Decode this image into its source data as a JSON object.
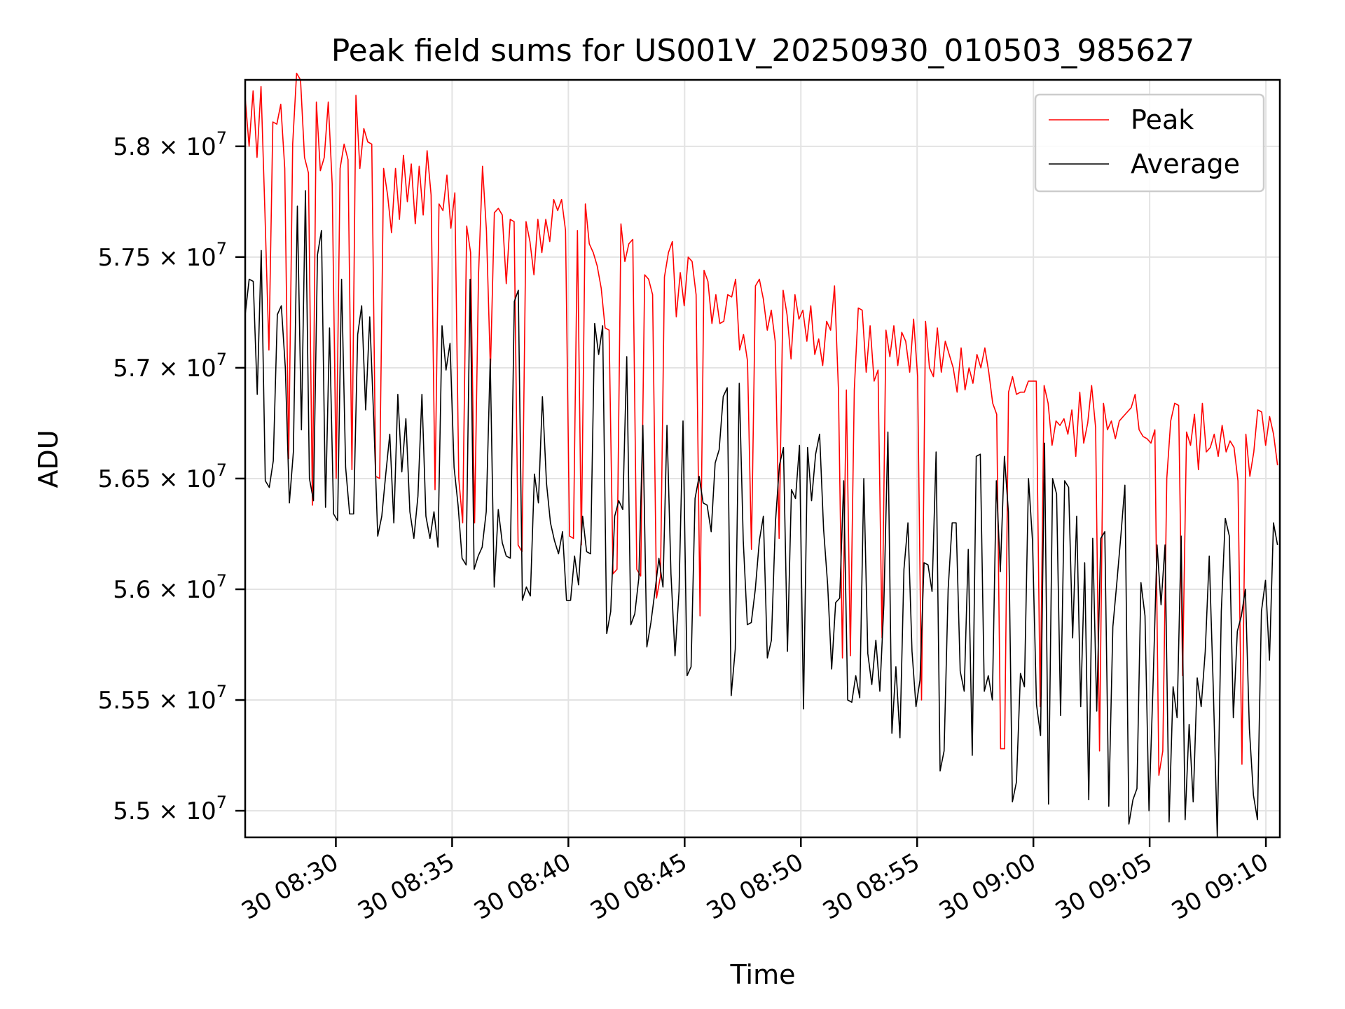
{
  "chart_data": {
    "type": "line",
    "title": "Peak field sums for US001V_20250930_010503_985627",
    "xlabel": "Time",
    "ylabel": "ADU",
    "grid": true,
    "legend_position": "top-right",
    "x_range_minutes": [
      506.1,
      550.6
    ],
    "x_start_minutes": 506.1,
    "x_end_minutes": 550.5,
    "ylim": [
      54880000,
      58300000
    ],
    "x_ticks": [
      {
        "minutes": 510,
        "label": "30 08:30"
      },
      {
        "minutes": 515,
        "label": "30 08:35"
      },
      {
        "minutes": 520,
        "label": "30 08:40"
      },
      {
        "minutes": 525,
        "label": "30 08:45"
      },
      {
        "minutes": 530,
        "label": "30 08:50"
      },
      {
        "minutes": 535,
        "label": "30 08:55"
      },
      {
        "minutes": 540,
        "label": "30 09:00"
      },
      {
        "minutes": 545,
        "label": "30 09:05"
      },
      {
        "minutes": 550,
        "label": "30 09:10"
      }
    ],
    "y_ticks": [
      {
        "value": 55000000,
        "label": "5.5 × 10",
        "exp": "7"
      },
      {
        "value": 55500000,
        "label": "5.55 × 10",
        "exp": "7"
      },
      {
        "value": 56000000,
        "label": "5.6 × 10",
        "exp": "7"
      },
      {
        "value": 56500000,
        "label": "5.65 × 10",
        "exp": "7"
      },
      {
        "value": 57000000,
        "label": "5.7 × 10",
        "exp": "7"
      },
      {
        "value": 57500000,
        "label": "5.75 × 10",
        "exp": "7"
      },
      {
        "value": 58000000,
        "label": "5.8 × 10",
        "exp": "7"
      }
    ],
    "series": [
      {
        "name": "Peak",
        "color": "#ff0000",
        "values": [
          58220000,
          58000000,
          58250000,
          57950000,
          58270000,
          57700000,
          57080000,
          58110000,
          58100000,
          58190000,
          57900000,
          56590000,
          58010000,
          58330000,
          58300000,
          57950000,
          57880000,
          56380000,
          58200000,
          57890000,
          57950000,
          58200000,
          57830000,
          56500000,
          57900000,
          58010000,
          57940000,
          56540000,
          58230000,
          57900000,
          58080000,
          58020000,
          58010000,
          56510000,
          56500000,
          57900000,
          57780000,
          57610000,
          57900000,
          57670000,
          57960000,
          57750000,
          57920000,
          57650000,
          57910000,
          57690000,
          57980000,
          57780000,
          56450000,
          57740000,
          57710000,
          57870000,
          57630000,
          57790000,
          56500000,
          56300000,
          57640000,
          57520000,
          56300000,
          57420000,
          57910000,
          57620000,
          56990000,
          57700000,
          57720000,
          57690000,
          57380000,
          57670000,
          57660000,
          56200000,
          56170000,
          57660000,
          57570000,
          57420000,
          57670000,
          57520000,
          57670000,
          57570000,
          57760000,
          57710000,
          57760000,
          57620000,
          56240000,
          56230000,
          57620000,
          56200000,
          57740000,
          57560000,
          57520000,
          57460000,
          57360000,
          57180000,
          57170000,
          56070000,
          56090000,
          57650000,
          57480000,
          57560000,
          57580000,
          56090000,
          56060000,
          57420000,
          57400000,
          57330000,
          55960000,
          56060000,
          57410000,
          57520000,
          57570000,
          57230000,
          57430000,
          57280000,
          57500000,
          57480000,
          57330000,
          55880000,
          57440000,
          57390000,
          57200000,
          57330000,
          57200000,
          57210000,
          57330000,
          57320000,
          57400000,
          57080000,
          57150000,
          57030000,
          56180000,
          57370000,
          57400000,
          57310000,
          57170000,
          57260000,
          57120000,
          56230000,
          57350000,
          57240000,
          57040000,
          57330000,
          57220000,
          57260000,
          57120000,
          57280000,
          57060000,
          57130000,
          57010000,
          57210000,
          57170000,
          57370000,
          56900000,
          55690000,
          56900000,
          55700000,
          56900000,
          57270000,
          57260000,
          56980000,
          57190000,
          56940000,
          56990000,
          55780000,
          57170000,
          57050000,
          57190000,
          57010000,
          57160000,
          57120000,
          56980000,
          57220000,
          56960000,
          55500000,
          57210000,
          57000000,
          56960000,
          57180000,
          56980000,
          57120000,
          57060000,
          57000000,
          56890000,
          57090000,
          56900000,
          57000000,
          56930000,
          57060000,
          57000000,
          57090000,
          56980000,
          56840000,
          56790000,
          55280000,
          55280000,
          56890000,
          56960000,
          56880000,
          56890000,
          56890000,
          56940000,
          56940000,
          56940000,
          55470000,
          56920000,
          56840000,
          56650000,
          56760000,
          56740000,
          56770000,
          56700000,
          56810000,
          56600000,
          56890000,
          56660000,
          56750000,
          56920000,
          56730000,
          55270000,
          56840000,
          56720000,
          56760000,
          56680000,
          56760000,
          56780000,
          56800000,
          56820000,
          56880000,
          56720000,
          56690000,
          56680000,
          56660000,
          56720000,
          55160000,
          55270000,
          56500000,
          56760000,
          56840000,
          56830000,
          55610000,
          56710000,
          56650000,
          56790000,
          56540000,
          56840000,
          56620000,
          56640000,
          56700000,
          56600000,
          56740000,
          56620000,
          56670000,
          56640000,
          56490000,
          55210000,
          56700000,
          56510000,
          56620000,
          56810000,
          56800000,
          56650000,
          56780000,
          56700000,
          56560000
        ]
      },
      {
        "name": "Average",
        "color": "#000000",
        "values": [
          57240000,
          57400000,
          57390000,
          56880000,
          57530000,
          56490000,
          56460000,
          56580000,
          57240000,
          57280000,
          57000000,
          56390000,
          56620000,
          57730000,
          56720000,
          57800000,
          56500000,
          56400000,
          57510000,
          57620000,
          56370000,
          57180000,
          56340000,
          56310000,
          57400000,
          56550000,
          56340000,
          56340000,
          57150000,
          57280000,
          56810000,
          57230000,
          56770000,
          56240000,
          56330000,
          56520000,
          56700000,
          56300000,
          56880000,
          56530000,
          56770000,
          56350000,
          56230000,
          56420000,
          56880000,
          56330000,
          56230000,
          56350000,
          56190000,
          57190000,
          56990000,
          57110000,
          56550000,
          56380000,
          56140000,
          56110000,
          57400000,
          56090000,
          56150000,
          56190000,
          56350000,
          57040000,
          56010000,
          56360000,
          56210000,
          56150000,
          56140000,
          57300000,
          57350000,
          55950000,
          56010000,
          55970000,
          56520000,
          56390000,
          56870000,
          56480000,
          56300000,
          56220000,
          56160000,
          56260000,
          55950000,
          55950000,
          56150000,
          56020000,
          56330000,
          56170000,
          56160000,
          57200000,
          57060000,
          57190000,
          55800000,
          55900000,
          56330000,
          56400000,
          56360000,
          57050000,
          55840000,
          55890000,
          56050000,
          56740000,
          55740000,
          55850000,
          55990000,
          56140000,
          56010000,
          56740000,
          56070000,
          55700000,
          55990000,
          56760000,
          55610000,
          55650000,
          56410000,
          56510000,
          56390000,
          56380000,
          56260000,
          56570000,
          56630000,
          56870000,
          56910000,
          55520000,
          55730000,
          56930000,
          56220000,
          55840000,
          55850000,
          56000000,
          56220000,
          56330000,
          55690000,
          55770000,
          56300000,
          56560000,
          56640000,
          55720000,
          56450000,
          56410000,
          56650000,
          55460000,
          56640000,
          56400000,
          56610000,
          56700000,
          56270000,
          56020000,
          55640000,
          55940000,
          55960000,
          56490000,
          55500000,
          55490000,
          55610000,
          55510000,
          56500000,
          55710000,
          55570000,
          55770000,
          55540000,
          55930000,
          56710000,
          55350000,
          55650000,
          55330000,
          56090000,
          56300000,
          55720000,
          55470000,
          55590000,
          56120000,
          56110000,
          55990000,
          56620000,
          55180000,
          55270000,
          56000000,
          56300000,
          56300000,
          55630000,
          55540000,
          56180000,
          55250000,
          56600000,
          56610000,
          55540000,
          55610000,
          55500000,
          56490000,
          56080000,
          56600000,
          56350000,
          55040000,
          55130000,
          55620000,
          55560000,
          56500000,
          56220000,
          55480000,
          55340000,
          56660000,
          55030000,
          56500000,
          56430000,
          55430000,
          56490000,
          56460000,
          55780000,
          56330000,
          55470000,
          56120000,
          55050000,
          56230000,
          55450000,
          56230000,
          56260000,
          55020000,
          55830000,
          56030000,
          56240000,
          56470000,
          54940000,
          55050000,
          55100000,
          56030000,
          55880000,
          55000000,
          55560000,
          56200000,
          55930000,
          56200000,
          54950000,
          55560000,
          55420000,
          56240000,
          54960000,
          55390000,
          55040000,
          55600000,
          55470000,
          55720000,
          56150000,
          55560000,
          54880000,
          55900000,
          56320000,
          56240000,
          55420000,
          55810000,
          55880000,
          56000000,
          55370000,
          55070000,
          54960000,
          55900000,
          56040000,
          55680000,
          56300000,
          56200000
        ]
      }
    ]
  }
}
